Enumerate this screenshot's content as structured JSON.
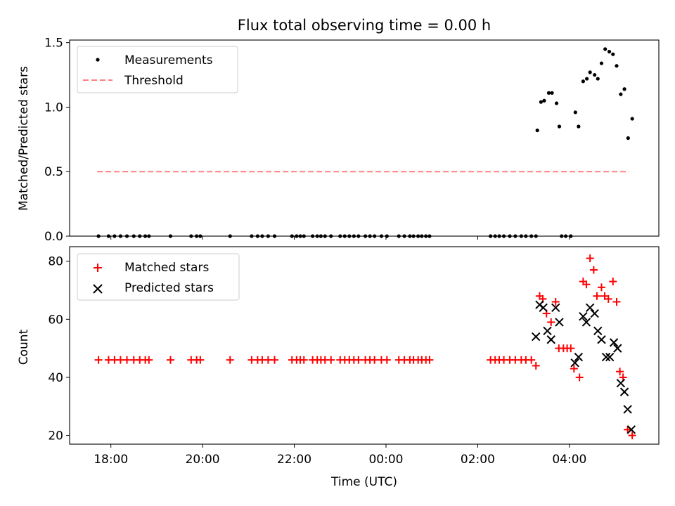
{
  "chart_data": {
    "type": "scatter",
    "title": "Flux total observing time = 0.00 h",
    "xlabel": "Time (UTC)",
    "x_unit": "hours since 00:00 UTC",
    "xlim": [
      -6.9,
      5.95
    ],
    "x_ticks": [
      -6,
      -4,
      -2,
      0,
      2,
      4
    ],
    "x_tick_labels": [
      "18:00",
      "20:00",
      "22:00",
      "00:00",
      "02:00",
      "04:00"
    ],
    "top_panel": {
      "ylabel": "Matched/Predicted stars",
      "ylim": [
        0,
        1.52
      ],
      "y_ticks": [
        0,
        0.5,
        1.0,
        1.5
      ],
      "y_tick_labels": [
        "0.0",
        "0.5",
        "1.0",
        "1.5"
      ],
      "legend_position": "upper-left",
      "legend": [
        "Measurements",
        "Threshold"
      ],
      "threshold": {
        "name": "Threshold",
        "value": 0.5,
        "x_range": [
          -6.3,
          5.3
        ],
        "color": "#ff7f7f"
      },
      "measurements": {
        "name": "Measurements",
        "color": "#000000",
        "points": [
          [
            -6.27,
            0
          ],
          [
            -6.05,
            0
          ],
          [
            -5.92,
            0
          ],
          [
            -5.79,
            0
          ],
          [
            -5.65,
            0
          ],
          [
            -5.5,
            0
          ],
          [
            -5.37,
            0
          ],
          [
            -5.25,
            0
          ],
          [
            -5.17,
            0
          ],
          [
            -4.7,
            0
          ],
          [
            -4.25,
            0
          ],
          [
            -4.13,
            0
          ],
          [
            -4.05,
            0
          ],
          [
            -3.4,
            0
          ],
          [
            -2.93,
            0
          ],
          [
            -2.8,
            0
          ],
          [
            -2.7,
            0
          ],
          [
            -2.57,
            0
          ],
          [
            -2.43,
            0
          ],
          [
            -2.05,
            0
          ],
          [
            -1.95,
            0
          ],
          [
            -1.87,
            0
          ],
          [
            -1.79,
            0
          ],
          [
            -1.6,
            0
          ],
          [
            -1.5,
            0
          ],
          [
            -1.42,
            0
          ],
          [
            -1.33,
            0
          ],
          [
            -1.2,
            0
          ],
          [
            -1.0,
            0
          ],
          [
            -0.9,
            0
          ],
          [
            -0.8,
            0
          ],
          [
            -0.7,
            0
          ],
          [
            -0.6,
            0
          ],
          [
            -0.45,
            0
          ],
          [
            -0.35,
            0
          ],
          [
            -0.25,
            0
          ],
          [
            -0.1,
            0
          ],
          [
            0.02,
            0
          ],
          [
            0.28,
            0
          ],
          [
            0.4,
            0
          ],
          [
            0.52,
            0
          ],
          [
            0.6,
            0
          ],
          [
            0.7,
            0
          ],
          [
            0.78,
            0
          ],
          [
            0.87,
            0
          ],
          [
            0.95,
            0
          ],
          [
            2.28,
            0
          ],
          [
            2.38,
            0
          ],
          [
            2.47,
            0
          ],
          [
            2.57,
            0
          ],
          [
            2.7,
            0
          ],
          [
            2.82,
            0
          ],
          [
            2.95,
            0
          ],
          [
            3.05,
            0
          ],
          [
            3.17,
            0
          ],
          [
            3.27,
            0
          ],
          [
            3.83,
            0
          ],
          [
            3.92,
            0
          ],
          [
            4.03,
            0
          ],
          [
            3.3,
            0.82
          ],
          [
            3.38,
            1.04
          ],
          [
            3.45,
            1.05
          ],
          [
            3.55,
            1.11
          ],
          [
            3.62,
            1.11
          ],
          [
            3.72,
            1.03
          ],
          [
            3.78,
            0.85
          ],
          [
            4.13,
            0.96
          ],
          [
            4.2,
            0.85
          ],
          [
            4.3,
            1.2
          ],
          [
            4.38,
            1.22
          ],
          [
            4.45,
            1.27
          ],
          [
            4.55,
            1.25
          ],
          [
            4.62,
            1.22
          ],
          [
            4.7,
            1.34
          ],
          [
            4.78,
            1.45
          ],
          [
            4.87,
            1.43
          ],
          [
            4.95,
            1.41
          ],
          [
            5.03,
            1.32
          ],
          [
            5.12,
            1.1
          ],
          [
            5.2,
            1.14
          ],
          [
            5.28,
            0.76
          ],
          [
            5.37,
            0.91
          ]
        ]
      }
    },
    "bottom_panel": {
      "ylabel": "Count",
      "ylim": [
        17,
        85
      ],
      "y_ticks": [
        20,
        40,
        60,
        80
      ],
      "y_tick_labels": [
        "20",
        "40",
        "60",
        "80"
      ],
      "legend_position": "upper-left",
      "legend": [
        "Matched stars",
        "Predicted stars"
      ],
      "series": [
        {
          "name": "Matched stars",
          "marker": "+",
          "color": "#ff0000",
          "points": [
            [
              -6.27,
              46
            ],
            [
              -6.05,
              46
            ],
            [
              -5.92,
              46
            ],
            [
              -5.79,
              46
            ],
            [
              -5.65,
              46
            ],
            [
              -5.5,
              46
            ],
            [
              -5.37,
              46
            ],
            [
              -5.25,
              46
            ],
            [
              -5.17,
              46
            ],
            [
              -4.7,
              46
            ],
            [
              -4.25,
              46
            ],
            [
              -4.13,
              46
            ],
            [
              -4.05,
              46
            ],
            [
              -3.4,
              46
            ],
            [
              -2.93,
              46
            ],
            [
              -2.8,
              46
            ],
            [
              -2.7,
              46
            ],
            [
              -2.57,
              46
            ],
            [
              -2.43,
              46
            ],
            [
              -2.05,
              46
            ],
            [
              -1.95,
              46
            ],
            [
              -1.87,
              46
            ],
            [
              -1.79,
              46
            ],
            [
              -1.6,
              46
            ],
            [
              -1.5,
              46
            ],
            [
              -1.42,
              46
            ],
            [
              -1.33,
              46
            ],
            [
              -1.2,
              46
            ],
            [
              -1.0,
              46
            ],
            [
              -0.9,
              46
            ],
            [
              -0.8,
              46
            ],
            [
              -0.7,
              46
            ],
            [
              -0.6,
              46
            ],
            [
              -0.45,
              46
            ],
            [
              -0.35,
              46
            ],
            [
              -0.25,
              46
            ],
            [
              -0.1,
              46
            ],
            [
              0.02,
              46
            ],
            [
              0.28,
              46
            ],
            [
              0.4,
              46
            ],
            [
              0.52,
              46
            ],
            [
              0.6,
              46
            ],
            [
              0.7,
              46
            ],
            [
              0.78,
              46
            ],
            [
              0.87,
              46
            ],
            [
              0.95,
              46
            ],
            [
              2.28,
              46
            ],
            [
              2.38,
              46
            ],
            [
              2.47,
              46
            ],
            [
              2.57,
              46
            ],
            [
              2.7,
              46
            ],
            [
              2.82,
              46
            ],
            [
              2.95,
              46
            ],
            [
              3.05,
              46
            ],
            [
              3.17,
              46
            ],
            [
              3.27,
              44
            ],
            [
              3.35,
              68
            ],
            [
              3.42,
              67
            ],
            [
              3.5,
              62
            ],
            [
              3.6,
              59
            ],
            [
              3.7,
              66
            ],
            [
              3.77,
              50
            ],
            [
              3.87,
              50
            ],
            [
              3.95,
              50
            ],
            [
              4.03,
              50
            ],
            [
              4.1,
              43
            ],
            [
              4.22,
              40
            ],
            [
              4.3,
              73
            ],
            [
              4.37,
              72
            ],
            [
              4.45,
              81
            ],
            [
              4.53,
              77
            ],
            [
              4.6,
              68
            ],
            [
              4.7,
              71
            ],
            [
              4.77,
              68
            ],
            [
              4.85,
              67
            ],
            [
              4.95,
              73
            ],
            [
              5.03,
              66
            ],
            [
              5.1,
              42
            ],
            [
              5.17,
              40
            ],
            [
              5.27,
              22
            ],
            [
              5.37,
              20
            ]
          ]
        },
        {
          "name": "Predicted stars",
          "marker": "x",
          "color": "#000000",
          "points": [
            [
              3.27,
              54
            ],
            [
              3.35,
              65
            ],
            [
              3.43,
              64
            ],
            [
              3.52,
              56
            ],
            [
              3.6,
              53
            ],
            [
              3.7,
              64
            ],
            [
              3.78,
              59
            ],
            [
              4.12,
              45
            ],
            [
              4.2,
              47
            ],
            [
              4.3,
              61
            ],
            [
              4.37,
              59
            ],
            [
              4.45,
              64
            ],
            [
              4.55,
              62
            ],
            [
              4.62,
              56
            ],
            [
              4.7,
              53
            ],
            [
              4.8,
              47
            ],
            [
              4.88,
              47
            ],
            [
              4.97,
              52
            ],
            [
              5.05,
              50
            ],
            [
              5.12,
              38
            ],
            [
              5.2,
              35
            ],
            [
              5.27,
              29
            ],
            [
              5.35,
              22
            ]
          ]
        }
      ]
    }
  }
}
